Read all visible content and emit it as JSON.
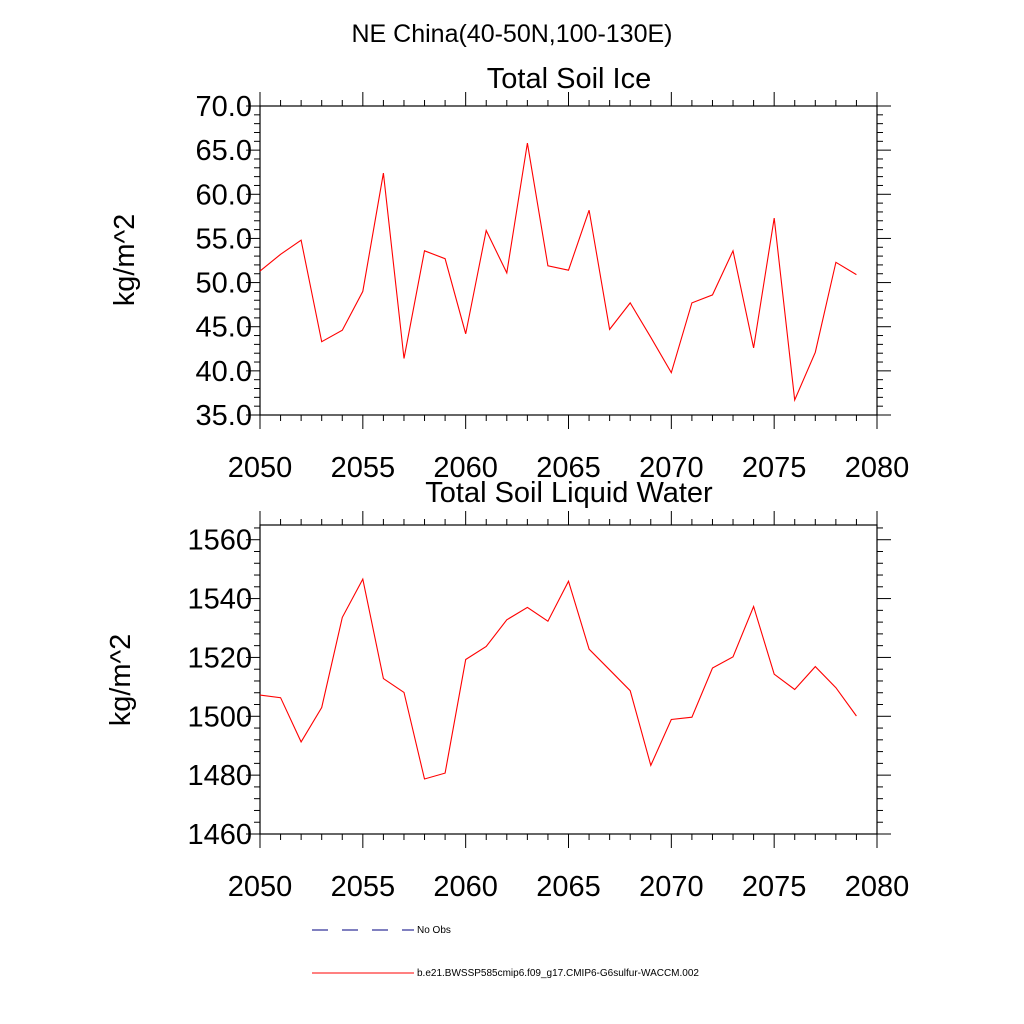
{
  "title": "NE China(40-50N,100-130E)",
  "chart_data": [
    {
      "type": "line",
      "title": "Total Soil Ice",
      "ylabel": "kg/m^2",
      "xlabel": "",
      "xlim": [
        2050,
        2080
      ],
      "ylim": [
        35,
        70
      ],
      "xticks": [
        2050,
        2055,
        2060,
        2065,
        2070,
        2075,
        2080
      ],
      "xtick_labels": [
        "2050",
        "2055",
        "2060",
        "2065",
        "2070",
        "2075",
        "2080"
      ],
      "yticks": [
        35,
        40,
        45,
        50,
        55,
        60,
        65,
        70
      ],
      "ytick_labels": [
        "35.0",
        "40.0",
        "45.0",
        "50.0",
        "55.0",
        "60.0",
        "65.0",
        "70.0"
      ],
      "grid": false,
      "series": [
        {
          "name": "b.e21.BWSSP585cmip6.f09_g17.CMIP6-G6sulfur-WACCM.002",
          "color": "#ff0000",
          "x": [
            2050,
            2051,
            2052,
            2053,
            2054,
            2055,
            2056,
            2057,
            2058,
            2059,
            2060,
            2061,
            2062,
            2063,
            2064,
            2065,
            2066,
            2067,
            2068,
            2069,
            2070,
            2071,
            2072,
            2073,
            2074,
            2075,
            2076,
            2077,
            2078,
            2079
          ],
          "values": [
            51.3,
            53.2,
            54.8,
            43.3,
            44.6,
            49.0,
            62.4,
            41.4,
            53.6,
            52.7,
            44.2,
            55.9,
            51.1,
            65.8,
            51.9,
            51.4,
            58.2,
            44.7,
            47.7,
            43.8,
            39.8,
            47.7,
            48.6,
            53.6,
            42.6,
            57.3,
            36.7,
            42.1,
            52.3,
            50.9
          ]
        }
      ]
    },
    {
      "type": "line",
      "title": "Total Soil Liquid Water",
      "ylabel": "kg/m^2",
      "xlabel": "",
      "xlim": [
        2050,
        2080
      ],
      "ylim": [
        1460,
        1565
      ],
      "xticks": [
        2050,
        2055,
        2060,
        2065,
        2070,
        2075,
        2080
      ],
      "xtick_labels": [
        "2050",
        "2055",
        "2060",
        "2065",
        "2070",
        "2075",
        "2080"
      ],
      "yticks": [
        1460,
        1480,
        1500,
        1520,
        1540,
        1560
      ],
      "ytick_labels": [
        "1460",
        "1480",
        "1500",
        "1520",
        "1540",
        "1560"
      ],
      "grid": false,
      "series": [
        {
          "name": "b.e21.BWSSP585cmip6.f09_g17.CMIP6-G6sulfur-WACCM.002",
          "color": "#ff0000",
          "x": [
            2050,
            2051,
            2052,
            2053,
            2054,
            2055,
            2056,
            2057,
            2058,
            2059,
            2060,
            2061,
            2062,
            2063,
            2064,
            2065,
            2066,
            2067,
            2068,
            2069,
            2070,
            2071,
            2072,
            2073,
            2074,
            2075,
            2076,
            2077,
            2078,
            2079
          ],
          "values": [
            1507.2,
            1506.3,
            1491.3,
            1503.0,
            1533.6,
            1546.6,
            1512.8,
            1508.1,
            1478.7,
            1480.7,
            1519.3,
            1523.7,
            1532.8,
            1537.0,
            1532.3,
            1545.9,
            1522.8,
            1515.8,
            1508.7,
            1483.3,
            1498.9,
            1499.7,
            1516.4,
            1520.2,
            1537.3,
            1514.3,
            1509.1,
            1516.9,
            1509.7,
            1500.1
          ]
        }
      ]
    }
  ],
  "legend": [
    {
      "label": "No Obs",
      "style": "dashed",
      "color": "#000080"
    },
    {
      "label": "b.e21.BWSSP585cmip6.f09_g17.CMIP6-G6sulfur-WACCM.002",
      "style": "solid",
      "color": "#ff0000"
    }
  ]
}
